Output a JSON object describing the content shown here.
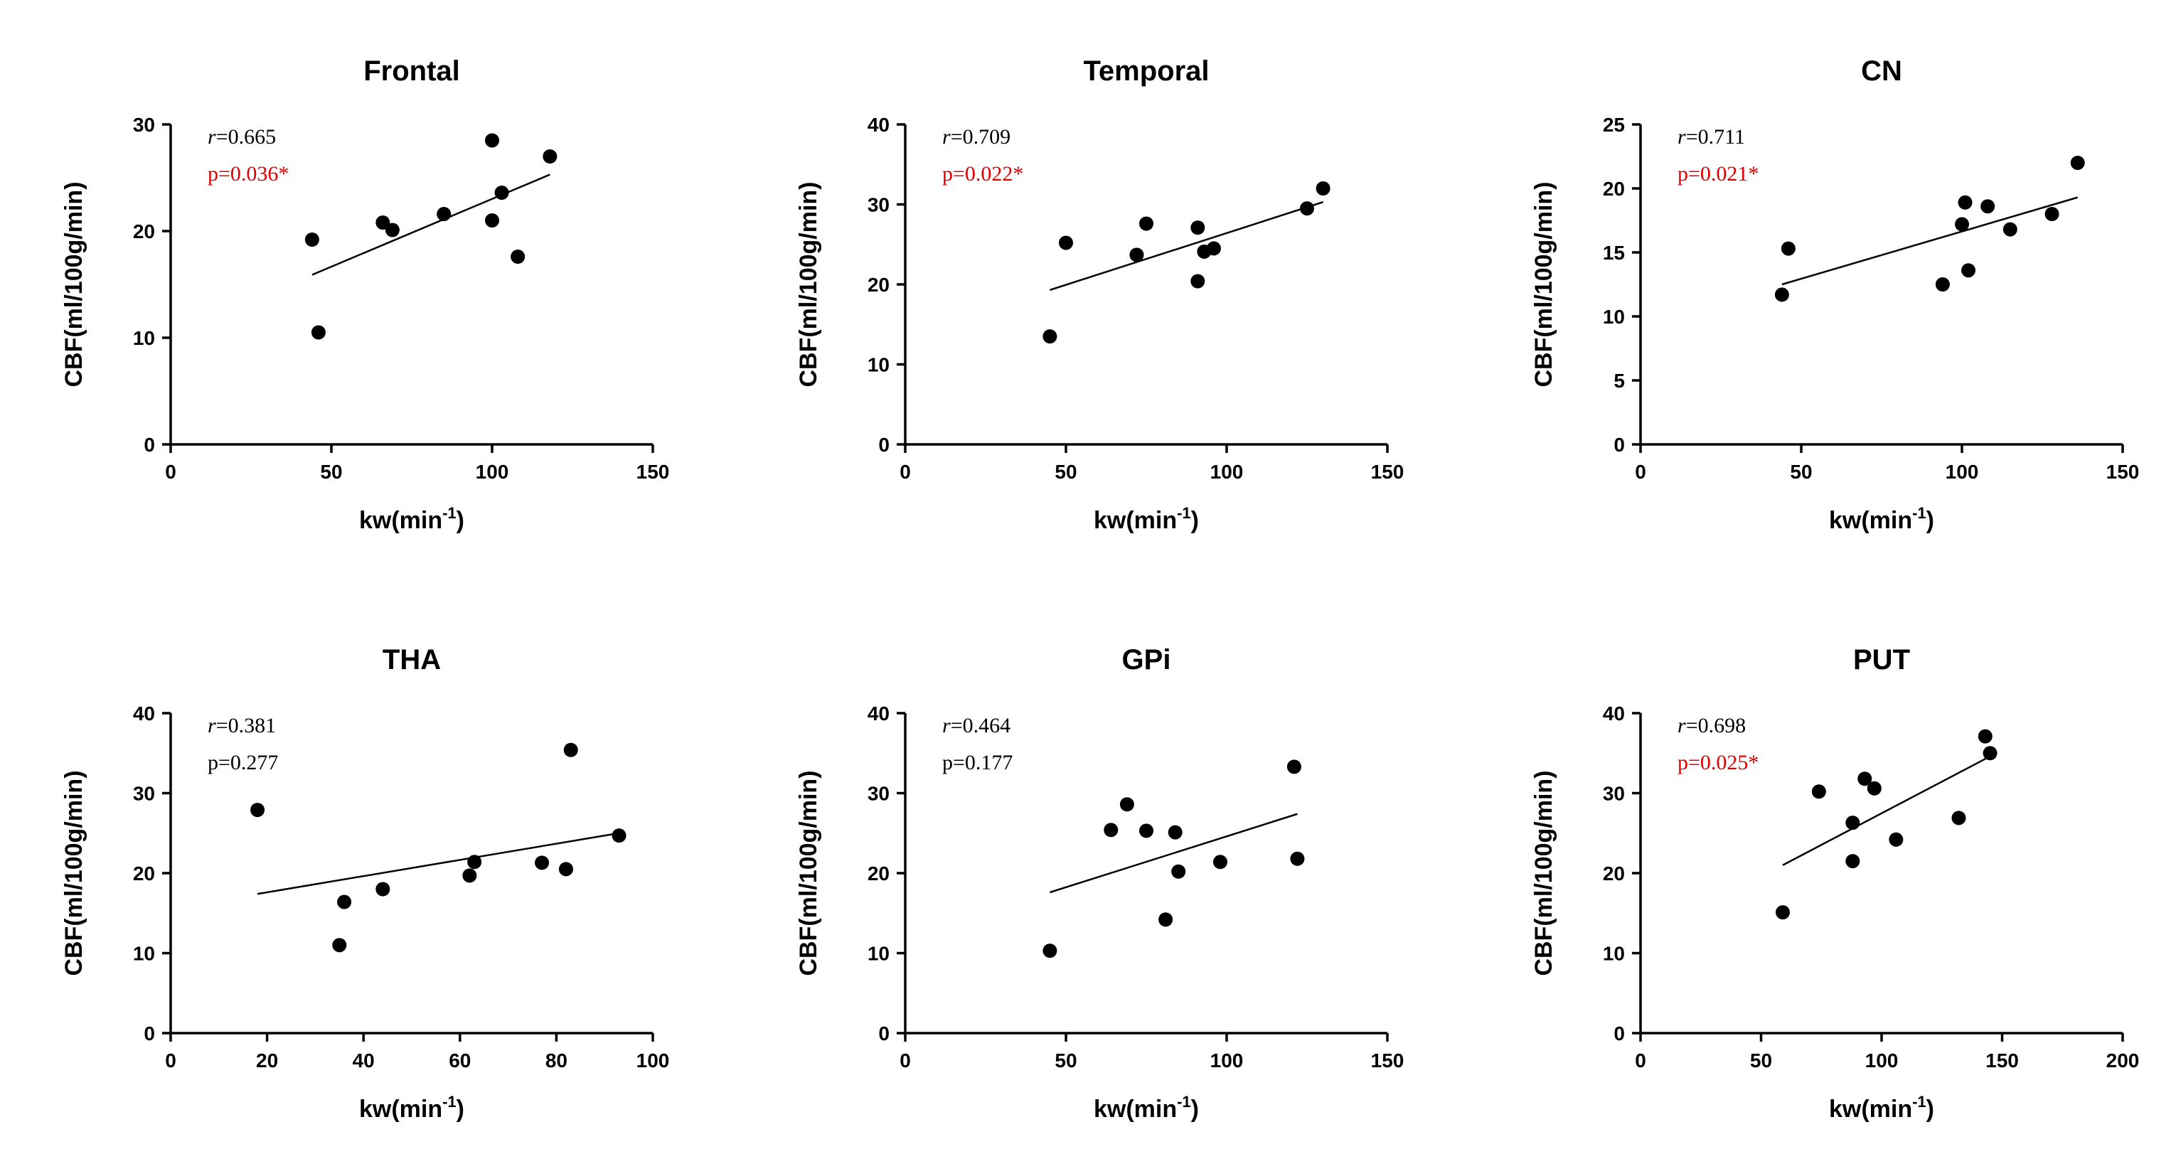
{
  "colors": {
    "ink": "#000000",
    "significant": "#e00000"
  },
  "chart_data": [
    {
      "type": "scatter",
      "title": "Frontal",
      "xlabel": "kw(min",
      "xlabel_sup": "-1",
      "xlabel_close": ")",
      "ylabel": "CBF(ml/100g/min)",
      "xlim": [
        0,
        150
      ],
      "ylim": [
        0,
        30
      ],
      "xticks": [
        "0",
        "50",
        "100",
        "150"
      ],
      "yticks": [
        "0",
        "10",
        "20",
        "30"
      ],
      "x": [
        44,
        46,
        66,
        69,
        85,
        100,
        100,
        103,
        108,
        118
      ],
      "y": [
        19.2,
        10.5,
        20.8,
        20.1,
        21.6,
        28.5,
        21.0,
        23.6,
        17.6,
        27.0
      ],
      "fit_line": {
        "x": [
          44,
          118
        ],
        "y": [
          15.9,
          25.3
        ]
      },
      "r_symbol": "r",
      "r_text": "=0.665",
      "p_text": "p=0.036*",
      "significant": true
    },
    {
      "type": "scatter",
      "title": "Temporal",
      "xlabel": "kw(min",
      "xlabel_sup": "-1",
      "xlabel_close": ")",
      "ylabel": "CBF(ml/100g/min)",
      "xlim": [
        0,
        150
      ],
      "ylim": [
        0,
        40
      ],
      "xticks": [
        "0",
        "50",
        "100",
        "150"
      ],
      "yticks": [
        "0",
        "10",
        "20",
        "30",
        "40"
      ],
      "x": [
        45,
        50,
        72,
        75,
        91,
        91,
        93,
        96,
        125,
        130
      ],
      "y": [
        13.5,
        25.2,
        23.7,
        27.6,
        27.1,
        20.4,
        24.1,
        24.5,
        29.5,
        32.0
      ],
      "fit_line": {
        "x": [
          45,
          130
        ],
        "y": [
          19.3,
          30.3
        ]
      },
      "r_symbol": "r",
      "r_text": "=0.709",
      "p_text": "p=0.022*",
      "significant": true
    },
    {
      "type": "scatter",
      "title": "CN",
      "xlabel": "kw(min",
      "xlabel_sup": "-1",
      "xlabel_close": ")",
      "ylabel": "CBF(ml/100g/min)",
      "xlim": [
        0,
        150
      ],
      "ylim": [
        0,
        25
      ],
      "xticks": [
        "0",
        "50",
        "100",
        "150"
      ],
      "yticks": [
        "0",
        "5",
        "10",
        "15",
        "20",
        "25"
      ],
      "x": [
        44,
        46,
        94,
        100,
        101,
        102,
        108,
        115,
        128,
        136
      ],
      "y": [
        11.7,
        15.3,
        12.5,
        17.2,
        18.9,
        13.6,
        18.6,
        16.8,
        18.0,
        22.0
      ],
      "fit_line": {
        "x": [
          44,
          136
        ],
        "y": [
          12.5,
          19.3
        ]
      },
      "r_symbol": "r",
      "r_text": "=0.711",
      "p_text": "p=0.021*",
      "significant": true
    },
    {
      "type": "scatter",
      "title": "THA",
      "xlabel": "kw(min",
      "xlabel_sup": "-1",
      "xlabel_close": ")",
      "ylabel": "CBF(ml/100g/min)",
      "xlim": [
        0,
        100
      ],
      "ylim": [
        0,
        40
      ],
      "xticks": [
        "0",
        "20",
        "40",
        "60",
        "80",
        "100"
      ],
      "yticks": [
        "0",
        "10",
        "20",
        "30",
        "40"
      ],
      "x": [
        18,
        35,
        36,
        44,
        62,
        63,
        77,
        82,
        83,
        93
      ],
      "y": [
        27.9,
        11.0,
        16.4,
        18.0,
        19.7,
        21.4,
        21.3,
        20.5,
        35.4,
        24.7
      ],
      "fit_line": {
        "x": [
          18,
          93
        ],
        "y": [
          17.4,
          25.0
        ]
      },
      "r_symbol": "r",
      "r_text": "=0.381",
      "p_text": "p=0.277",
      "significant": false
    },
    {
      "type": "scatter",
      "title": "GPi",
      "xlabel": "kw(min",
      "xlabel_sup": "-1",
      "xlabel_close": ")",
      "ylabel": "CBF(ml/100g/min)",
      "xlim": [
        0,
        150
      ],
      "ylim": [
        0,
        40
      ],
      "xticks": [
        "0",
        "50",
        "100",
        "150"
      ],
      "yticks": [
        "0",
        "10",
        "20",
        "30",
        "40"
      ],
      "x": [
        45,
        64,
        69,
        75,
        81,
        84,
        85,
        98,
        121,
        122
      ],
      "y": [
        10.3,
        25.4,
        28.6,
        25.3,
        14.2,
        25.1,
        20.2,
        21.4,
        33.3,
        21.8
      ],
      "fit_line": {
        "x": [
          45,
          122
        ],
        "y": [
          17.6,
          27.4
        ]
      },
      "r_symbol": "r",
      "r_text": "=0.464",
      "p_text": "p=0.177",
      "significant": false
    },
    {
      "type": "scatter",
      "title": "PUT",
      "xlabel": "kw(min",
      "xlabel_sup": "-1",
      "xlabel_close": ")",
      "ylabel": "CBF(ml/100g/min)",
      "xlim": [
        0,
        200
      ],
      "ylim": [
        0,
        40
      ],
      "xticks": [
        "0",
        "50",
        "100",
        "150",
        "200"
      ],
      "yticks": [
        "0",
        "10",
        "20",
        "30",
        "40"
      ],
      "x": [
        59,
        74,
        88,
        88,
        93,
        97,
        106,
        132,
        143,
        145
      ],
      "y": [
        15.1,
        30.2,
        21.5,
        26.3,
        31.8,
        30.6,
        24.2,
        26.9,
        37.1,
        35.0
      ],
      "fit_line": {
        "x": [
          59,
          145
        ],
        "y": [
          21.0,
          34.6
        ]
      },
      "r_symbol": "r",
      "r_text": "=0.698",
      "p_text": "p=0.025*",
      "significant": true
    }
  ]
}
